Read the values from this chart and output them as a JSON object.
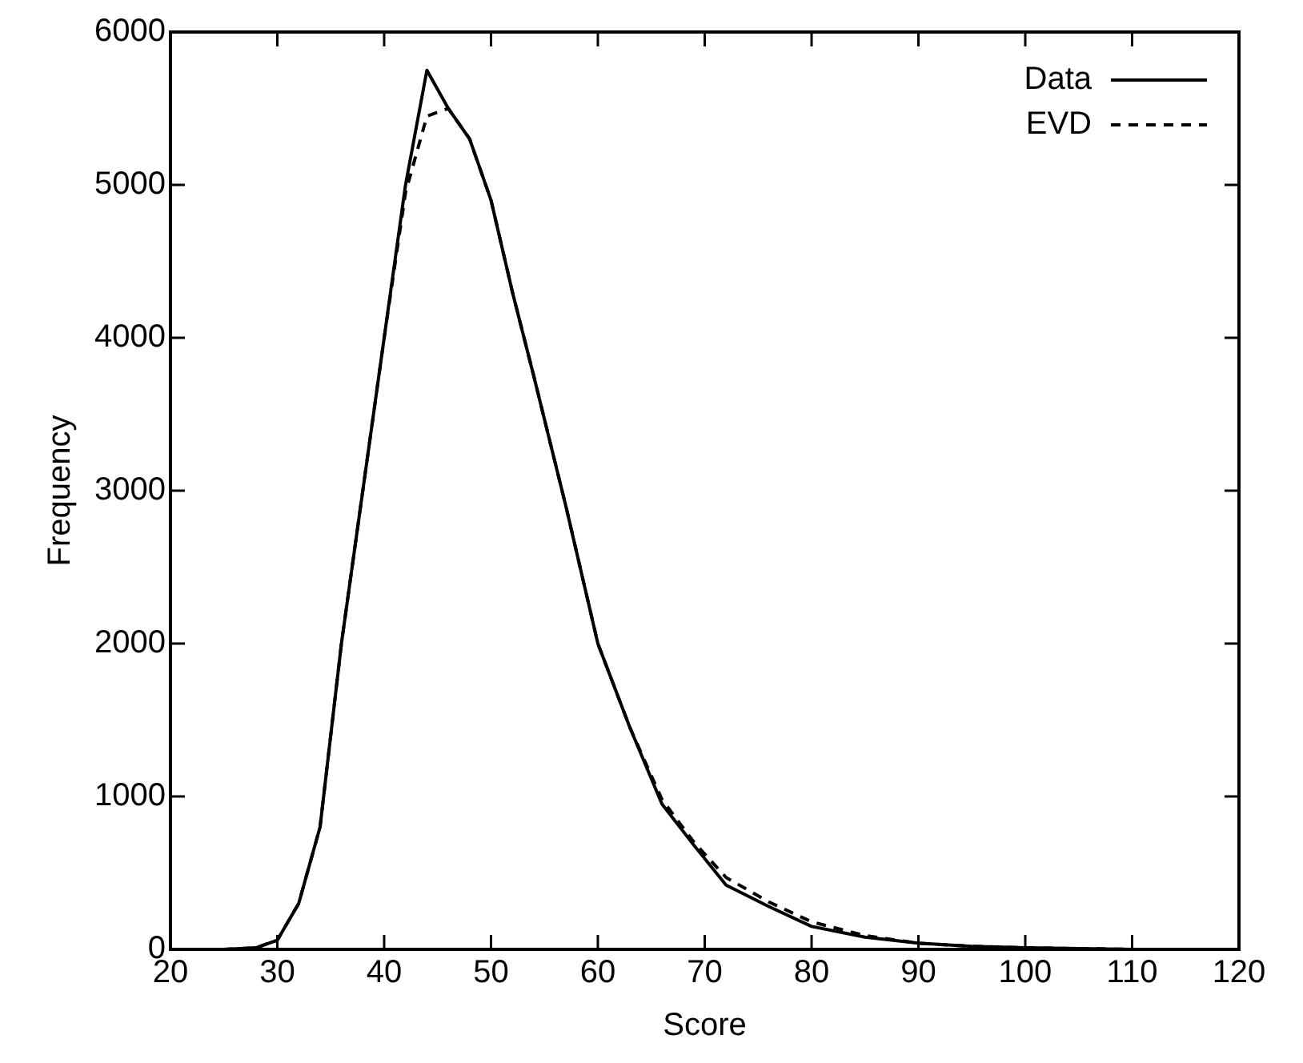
{
  "chart_data": {
    "type": "line",
    "xlabel": "Score",
    "ylabel": "Frequency",
    "x": [
      20,
      25,
      28,
      30,
      32,
      34,
      36,
      38,
      40,
      42,
      44,
      46,
      48,
      50,
      52,
      54,
      57,
      60,
      63,
      66,
      69,
      72,
      76,
      80,
      85,
      90,
      95,
      100,
      110,
      120
    ],
    "series": [
      {
        "name": "Data",
        "color": "#000000",
        "line_style": "solid",
        "values": [
          0,
          0,
          10,
          60,
          300,
          800,
          2000,
          3000,
          4000,
          5000,
          5750,
          5500,
          5300,
          4900,
          4300,
          3750,
          2900,
          2000,
          1450,
          950,
          680,
          420,
          280,
          150,
          80,
          40,
          20,
          10,
          0,
          0
        ]
      },
      {
        "name": "EVD",
        "color": "#000000",
        "line_style": "dashed",
        "values": [
          0,
          0,
          10,
          60,
          300,
          800,
          2000,
          3000,
          4000,
          4950,
          5450,
          5500,
          5300,
          4900,
          4300,
          3750,
          2900,
          2000,
          1450,
          980,
          700,
          470,
          310,
          180,
          90,
          40,
          20,
          10,
          0,
          0
        ]
      }
    ],
    "xlim": [
      20,
      120
    ],
    "xticks": [
      20,
      30,
      40,
      50,
      60,
      70,
      80,
      90,
      100,
      110,
      120
    ],
    "ylim": [
      0,
      6000
    ],
    "yticks": [
      0,
      1000,
      2000,
      3000,
      4000,
      5000,
      6000
    ],
    "grid": false,
    "legend": "top right",
    "marker": "none"
  }
}
